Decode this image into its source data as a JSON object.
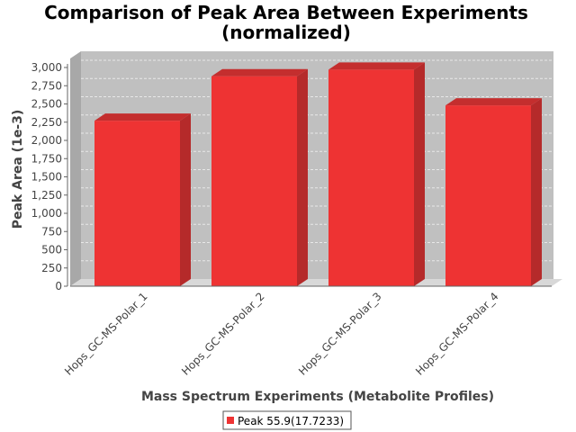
{
  "chart_data": {
    "type": "bar",
    "title_line1": "Comparison of Peak Area Between Experiments",
    "title_line2": "(normalized)",
    "xlabel": "Mass Spectrum Experiments (Metabolite Profiles)",
    "ylabel": "Peak Area (1e-3)",
    "categories": [
      "Hops_GC-MS-Polar_1",
      "Hops_GC-MS-Polar_2",
      "Hops_GC-MS-Polar_3",
      "Hops_GC-MS-Polar_4"
    ],
    "series": [
      {
        "name": "Peak 55.9(17.7233)",
        "values": [
          2270,
          2880,
          2970,
          2480
        ]
      }
    ],
    "ylim": [
      0,
      3000
    ],
    "ytick_step": 250,
    "yticks": [
      "0",
      "250",
      "500",
      "750",
      "1,000",
      "1,250",
      "1,500",
      "1,750",
      "2,000",
      "2,250",
      "2,500",
      "2,750",
      "3,000"
    ],
    "grid": true,
    "legend_position": "bottom-center",
    "colors": {
      "bar": "#ee3333",
      "bar_side": "#b52a2a",
      "bar_top": "#c42e2e",
      "plot_bg": "#c0c0c0",
      "plot_wall": "#a8a8a8",
      "plot_floor": "#d8d8d8",
      "grid": "#e8e8e8"
    }
  }
}
